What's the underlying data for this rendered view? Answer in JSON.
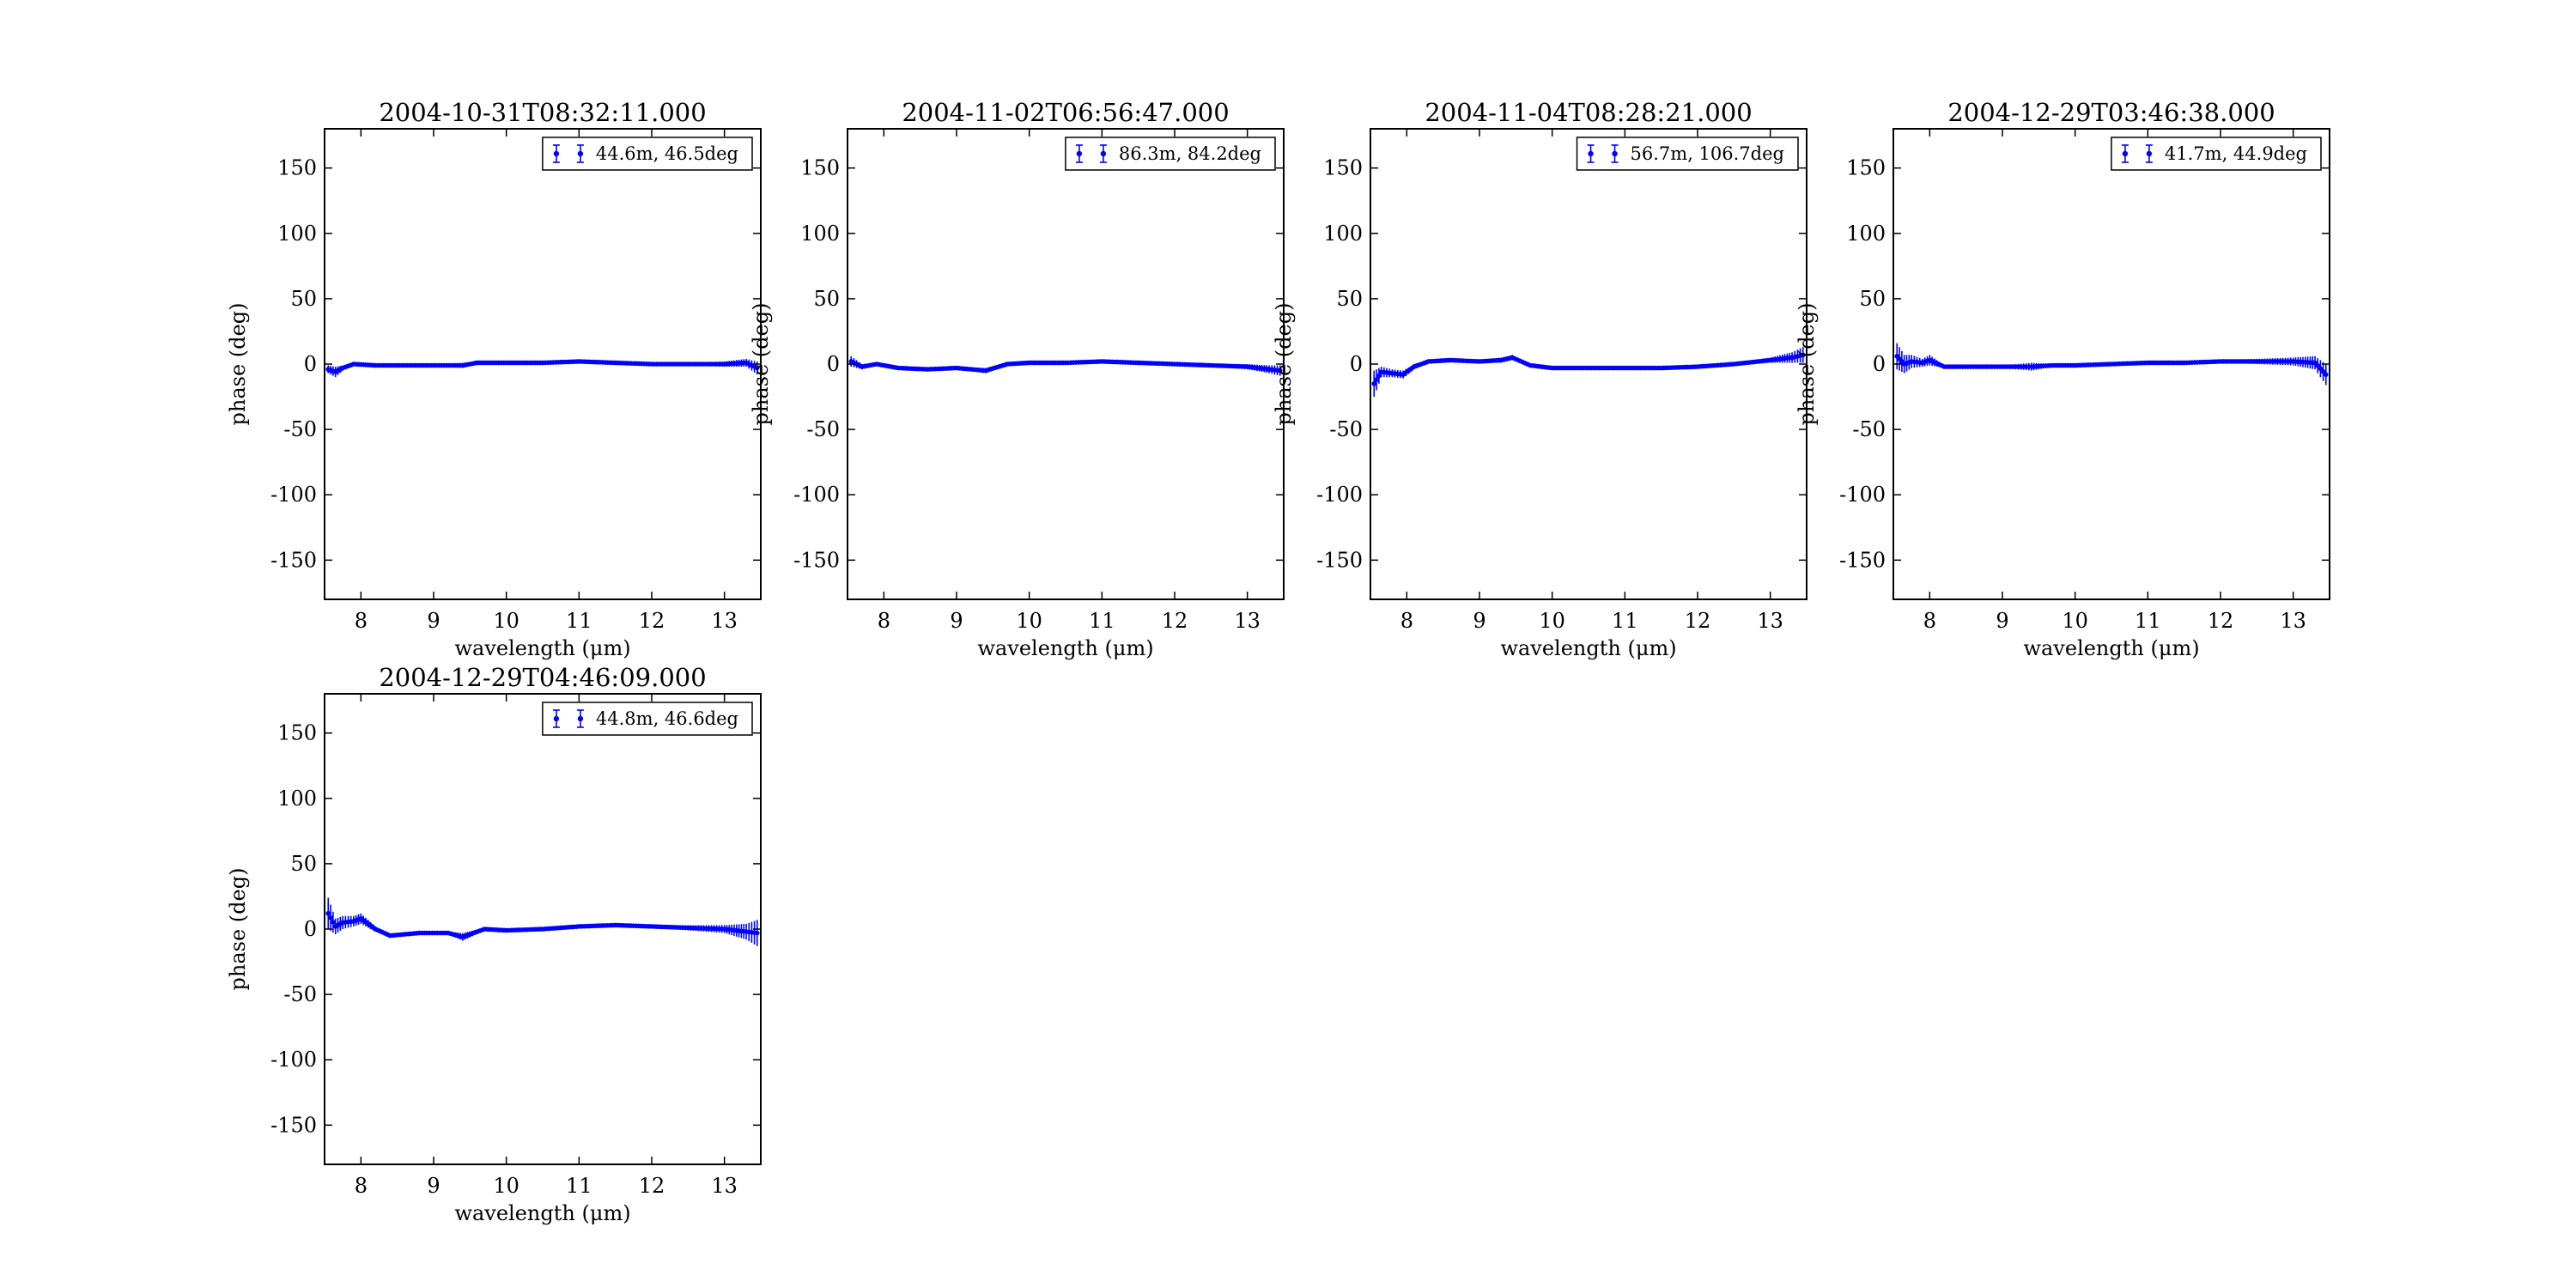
{
  "figure": {
    "ylabel": "phase (deg)",
    "xlabel": "wavelength (μm)"
  },
  "chart_data": [
    {
      "type": "scatter",
      "title": "2004-10-31T08:32:11.000",
      "xlabel": "wavelength (μm)",
      "ylabel": "phase (deg)",
      "xlim": [
        7.5,
        13.5
      ],
      "ylim": [
        -180,
        180
      ],
      "xticks": [
        8,
        9,
        10,
        11,
        12,
        13
      ],
      "yticks": [
        -150,
        -100,
        -50,
        0,
        50,
        100,
        150
      ],
      "grid": false,
      "legend_position": "top-right",
      "marker_color": "#0000ff",
      "series": [
        {
          "name": "44.6m, 46.5deg",
          "x": [
            7.55,
            7.65,
            7.75,
            7.9,
            8.2,
            8.6,
            9.0,
            9.4,
            9.6,
            10.0,
            10.5,
            11.0,
            11.5,
            12.0,
            12.5,
            13.0,
            13.3,
            13.45
          ],
          "y": [
            -4,
            -6,
            -3,
            0,
            -1,
            -1,
            -1,
            -1,
            1,
            1,
            1,
            2,
            1,
            0,
            0,
            0,
            1,
            -3
          ],
          "yerr": [
            3,
            4,
            2,
            1,
            1,
            1,
            1,
            2,
            1,
            1,
            1,
            1,
            1,
            1,
            1,
            2,
            3,
            5
          ]
        }
      ]
    },
    {
      "type": "scatter",
      "title": "2004-11-02T06:56:47.000",
      "xlabel": "wavelength (μm)",
      "ylabel": "phase (deg)",
      "xlim": [
        7.5,
        13.5
      ],
      "ylim": [
        -180,
        180
      ],
      "xticks": [
        8,
        9,
        10,
        11,
        12,
        13
      ],
      "yticks": [
        -150,
        -100,
        -50,
        0,
        50,
        100,
        150
      ],
      "grid": false,
      "legend_position": "top-right",
      "marker_color": "#0000ff",
      "series": [
        {
          "name": "86.3m, 84.2deg",
          "x": [
            7.55,
            7.7,
            7.9,
            8.2,
            8.6,
            9.0,
            9.4,
            9.7,
            10.0,
            10.5,
            11.0,
            11.5,
            12.0,
            12.5,
            13.0,
            13.3,
            13.45
          ],
          "y": [
            2,
            -2,
            0,
            -3,
            -4,
            -3,
            -5,
            0,
            1,
            1,
            2,
            1,
            0,
            -1,
            -2,
            -4,
            -5
          ],
          "yerr": [
            4,
            2,
            1,
            1,
            1,
            1,
            2,
            1,
            1,
            1,
            1,
            1,
            1,
            1,
            2,
            3,
            4
          ]
        }
      ]
    },
    {
      "type": "scatter",
      "title": "2004-11-04T08:28:21.000",
      "xlabel": "wavelength (μm)",
      "ylabel": "phase (deg)",
      "xlim": [
        7.5,
        13.5
      ],
      "ylim": [
        -180,
        180
      ],
      "xticks": [
        8,
        9,
        10,
        11,
        12,
        13
      ],
      "yticks": [
        -150,
        -100,
        -50,
        0,
        50,
        100,
        150
      ],
      "grid": false,
      "legend_position": "top-right",
      "marker_color": "#0000ff",
      "series": [
        {
          "name": "56.7m, 106.7deg",
          "x": [
            7.55,
            7.65,
            7.8,
            7.95,
            8.1,
            8.3,
            8.6,
            9.0,
            9.3,
            9.45,
            9.7,
            10.0,
            10.5,
            11.0,
            11.5,
            12.0,
            12.5,
            13.0,
            13.3,
            13.45
          ],
          "y": [
            -15,
            -6,
            -7,
            -8,
            -2,
            2,
            3,
            2,
            3,
            5,
            -1,
            -3,
            -3,
            -3,
            -3,
            -2,
            0,
            3,
            5,
            7
          ],
          "yerr": [
            10,
            4,
            3,
            3,
            2,
            1,
            1,
            1,
            2,
            2,
            1,
            1,
            1,
            1,
            1,
            1,
            1,
            2,
            4,
            6
          ]
        }
      ]
    },
    {
      "type": "scatter",
      "title": "2004-12-29T03:46:38.000",
      "xlabel": "wavelength (μm)",
      "ylabel": "phase (deg)",
      "xlim": [
        7.5,
        13.5
      ],
      "ylim": [
        -180,
        180
      ],
      "xticks": [
        8,
        9,
        10,
        11,
        12,
        13
      ],
      "yticks": [
        -150,
        -100,
        -50,
        0,
        50,
        100,
        150
      ],
      "grid": false,
      "legend_position": "top-right",
      "marker_color": "#0000ff",
      "series": [
        {
          "name": "41.7m, 44.9deg",
          "x": [
            7.55,
            7.65,
            7.75,
            7.9,
            8.0,
            8.2,
            8.6,
            9.0,
            9.4,
            9.7,
            10.0,
            10.5,
            11.0,
            11.5,
            12.0,
            12.5,
            13.0,
            13.3,
            13.45
          ],
          "y": [
            6,
            0,
            2,
            1,
            3,
            -2,
            -2,
            -2,
            -2,
            -1,
            -1,
            0,
            1,
            1,
            2,
            2,
            2,
            1,
            -8
          ],
          "yerr": [
            10,
            7,
            5,
            3,
            4,
            1,
            1,
            1,
            3,
            1,
            1,
            1,
            1,
            1,
            1,
            2,
            3,
            5,
            8
          ]
        }
      ]
    },
    {
      "type": "scatter",
      "title": "2004-12-29T04:46:09.000",
      "xlabel": "wavelength (μm)",
      "ylabel": "phase (deg)",
      "xlim": [
        7.5,
        13.5
      ],
      "ylim": [
        -180,
        180
      ],
      "xticks": [
        8,
        9,
        10,
        11,
        12,
        13
      ],
      "yticks": [
        -150,
        -100,
        -50,
        0,
        50,
        100,
        150
      ],
      "grid": false,
      "legend_position": "top-right",
      "marker_color": "#0000ff",
      "series": [
        {
          "name": "44.8m, 46.6deg",
          "x": [
            7.55,
            7.65,
            7.75,
            7.9,
            8.0,
            8.2,
            8.4,
            8.8,
            9.2,
            9.4,
            9.7,
            10.0,
            10.5,
            11.0,
            11.5,
            12.0,
            12.5,
            13.0,
            13.3,
            13.45
          ],
          "y": [
            12,
            2,
            5,
            6,
            8,
            0,
            -5,
            -3,
            -3,
            -6,
            0,
            -1,
            0,
            2,
            3,
            2,
            1,
            0,
            -2,
            -3
          ],
          "yerr": [
            12,
            6,
            5,
            4,
            4,
            2,
            1,
            1,
            1,
            3,
            1,
            1,
            1,
            1,
            1,
            1,
            2,
            3,
            6,
            10
          ]
        }
      ]
    }
  ]
}
